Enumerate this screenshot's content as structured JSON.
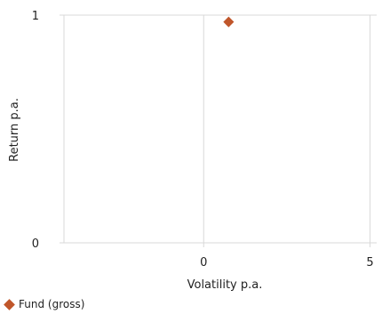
{
  "chart_data": {
    "type": "scatter",
    "xlabel": "Volatility p.a.",
    "ylabel": "Return p.a.",
    "xlim": [
      -4.2,
      5.2
    ],
    "ylim": [
      0,
      1
    ],
    "x_ticks": [
      0,
      5
    ],
    "y_ticks": [
      0,
      1
    ],
    "grid": true,
    "legend_position": "bottom-left",
    "series": [
      {
        "name": "Fund (gross)",
        "color": "#c0562a",
        "marker": "diamond",
        "points": [
          {
            "x": 0.75,
            "y": 0.97
          }
        ]
      }
    ]
  }
}
